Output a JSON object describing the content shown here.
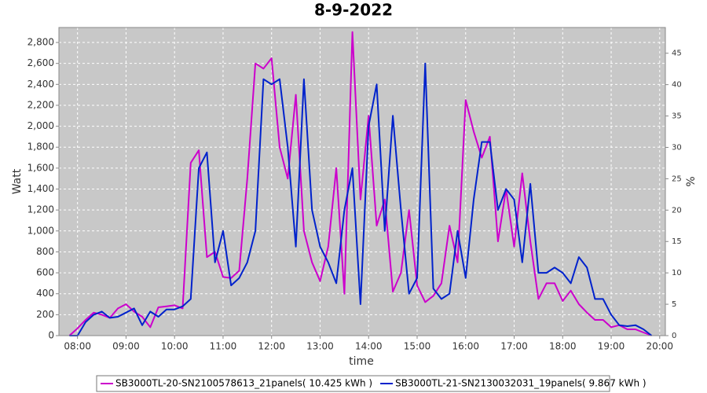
{
  "chart_data": {
    "type": "line",
    "title": "8-9-2022",
    "x_label": "time",
    "y_label": "Watt",
    "y2_label": "%",
    "xlim": [
      "07:37",
      "20:07"
    ],
    "xticks": [
      "08:00",
      "09:00",
      "10:00",
      "11:00",
      "12:00",
      "13:00",
      "14:00",
      "15:00",
      "16:00",
      "17:00",
      "18:00",
      "19:00",
      "20:00"
    ],
    "ylim": [
      0,
      2943
    ],
    "yticks": [
      0,
      200,
      400,
      600,
      800,
      {
        "value": 1000,
        "label": "1,000"
      },
      {
        "value": 1200,
        "label": "1,200"
      },
      {
        "value": 1400,
        "label": "1,400"
      },
      {
        "value": 1600,
        "label": "1,600"
      },
      {
        "value": 1800,
        "label": "1,800"
      },
      {
        "value": 2000,
        "label": "2,000"
      },
      {
        "value": 2200,
        "label": "2,200"
      },
      {
        "value": 2400,
        "label": "2,400"
      },
      {
        "value": 2600,
        "label": "2,600"
      },
      {
        "value": 2800,
        "label": "2,800"
      }
    ],
    "y2lim": [
      0,
      49.1
    ],
    "y2ticks": [
      0,
      5,
      10,
      15,
      20,
      25,
      30,
      35,
      40,
      45
    ],
    "grid": true,
    "x": [
      "07:50",
      "08:00",
      "08:10",
      "08:20",
      "08:30",
      "08:40",
      "08:50",
      "09:00",
      "09:10",
      "09:20",
      "09:30",
      "09:40",
      "09:50",
      "10:00",
      "10:10",
      "10:20",
      "10:30",
      "10:40",
      "10:50",
      "11:00",
      "11:10",
      "11:20",
      "11:30",
      "11:40",
      "11:50",
      "12:00",
      "12:10",
      "12:20",
      "12:30",
      "12:40",
      "12:50",
      "13:00",
      "13:10",
      "13:20",
      "13:30",
      "13:40",
      "13:50",
      "14:00",
      "14:10",
      "14:20",
      "14:30",
      "14:40",
      "14:50",
      "15:00",
      "15:10",
      "15:20",
      "15:30",
      "15:40",
      "15:50",
      "16:00",
      "16:10",
      "16:20",
      "16:30",
      "16:40",
      "16:50",
      "17:00",
      "17:10",
      "17:20",
      "17:30",
      "17:40",
      "17:50",
      "18:00",
      "18:10",
      "18:20",
      "18:30",
      "18:40",
      "18:50",
      "19:00",
      "19:10",
      "19:20",
      "19:30",
      "19:40",
      "19:50"
    ],
    "series": [
      {
        "name": "SB3000TL-20-SN2100578613_21panels( 10.425 kWh )",
        "color": "#cc00cc",
        "values": [
          0,
          70,
          150,
          220,
          200,
          170,
          260,
          300,
          230,
          180,
          80,
          270,
          280,
          290,
          260,
          1650,
          1770,
          750,
          800,
          560,
          550,
          620,
          1500,
          2600,
          2550,
          2650,
          1800,
          1500,
          2300,
          1000,
          700,
          520,
          850,
          1600,
          400,
          2900,
          1300,
          2100,
          1050,
          1300,
          420,
          600,
          1200,
          480,
          320,
          380,
          500,
          1050,
          700,
          2250,
          1950,
          1700,
          1900,
          900,
          1400,
          850,
          1550,
          900,
          350,
          500,
          500,
          330,
          430,
          300,
          220,
          150,
          150,
          80,
          100,
          60,
          60,
          30,
          0
        ]
      },
      {
        "name": "SB3000TL-21-SN2130032031_19panels( 9.867 kWh )",
        "color": "#0022cc",
        "values": [
          0,
          0,
          130,
          200,
          230,
          170,
          180,
          220,
          260,
          100,
          230,
          180,
          250,
          250,
          280,
          350,
          1600,
          1750,
          700,
          1000,
          480,
          550,
          700,
          1000,
          2450,
          2400,
          2450,
          1800,
          850,
          2450,
          1200,
          850,
          700,
          500,
          1200,
          1600,
          300,
          2000,
          2400,
          1000,
          2100,
          1200,
          400,
          550,
          2600,
          450,
          350,
          400,
          1000,
          550,
          1300,
          1850,
          1850,
          1200,
          1400,
          1300,
          700,
          1450,
          600,
          600,
          650,
          600,
          500,
          750,
          650,
          350,
          350,
          200,
          100,
          90,
          100,
          60,
          0
        ]
      }
    ]
  }
}
